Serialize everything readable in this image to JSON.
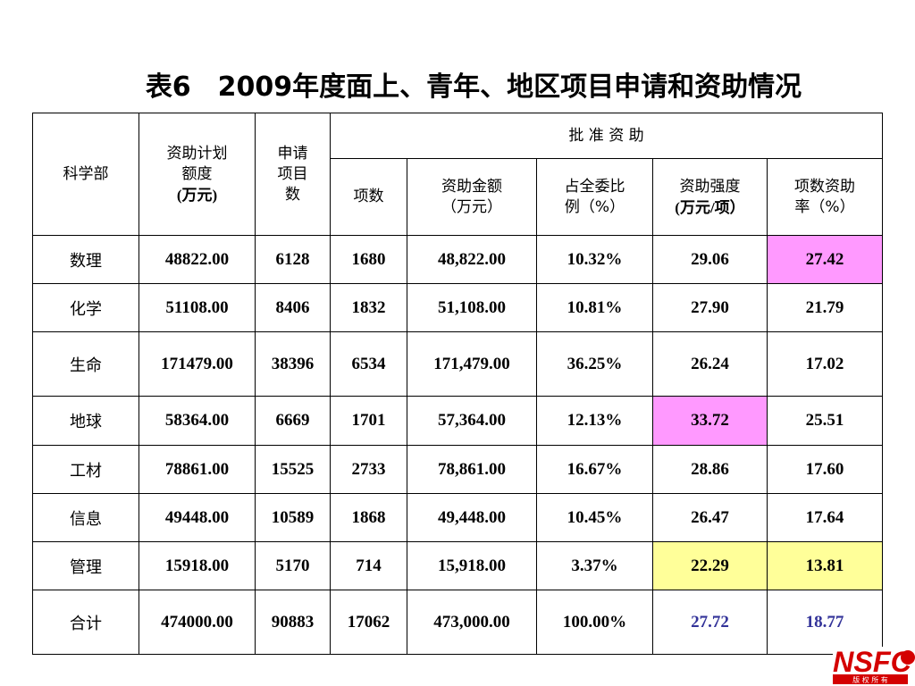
{
  "title": "表6　2009年度面上、青年、地区项目申请和资助情况",
  "headers": {
    "dept": "科学部",
    "plan_line1": "资助计划",
    "plan_line2": "额度",
    "plan_line3": "(万元)",
    "apply_line1": "申请",
    "apply_line2": "项目",
    "apply_line3": "数",
    "approved": "批 准 资 助",
    "count": "项数",
    "amount_line1": "资助金额",
    "amount_line2": "（万元）",
    "share_line1": "占全委比",
    "share_line2": "例（%）",
    "intensity_line1": "资助强度",
    "intensity_line2": "(万元/项）",
    "rate_line1": "项数资助",
    "rate_line2": "率（%）"
  },
  "rows": [
    {
      "dept": "数理",
      "plan": "48822.00",
      "apply": "6128",
      "count": "1680",
      "amount": "48,822.00",
      "share": "10.32%",
      "intensity": "29.06",
      "rate": "27.42"
    },
    {
      "dept": "化学",
      "plan": "51108.00",
      "apply": "8406",
      "count": "1832",
      "amount": "51,108.00",
      "share": "10.81%",
      "intensity": "27.90",
      "rate": "21.79"
    },
    {
      "dept": "生命",
      "plan": "171479.00",
      "apply": "38396",
      "count": "6534",
      "amount": "171,479.00",
      "share": "36.25%",
      "intensity": "26.24",
      "rate": "17.02"
    },
    {
      "dept": "地球",
      "plan": "58364.00",
      "apply": "6669",
      "count": "1701",
      "amount": "57,364.00",
      "share": "12.13%",
      "intensity": "33.72",
      "rate": "25.51"
    },
    {
      "dept": "工材",
      "plan": "78861.00",
      "apply": "15525",
      "count": "2733",
      "amount": "78,861.00",
      "share": "16.67%",
      "intensity": "28.86",
      "rate": "17.60"
    },
    {
      "dept": "信息",
      "plan": "49448.00",
      "apply": "10589",
      "count": "1868",
      "amount": "49,448.00",
      "share": "10.45%",
      "intensity": "26.47",
      "rate": "17.64"
    },
    {
      "dept": "管理",
      "plan": "15918.00",
      "apply": "5170",
      "count": "714",
      "amount": "15,918.00",
      "share": "3.37%",
      "intensity": "22.29",
      "rate": "13.81"
    },
    {
      "dept": "合计",
      "plan": "474000.00",
      "apply": "90883",
      "count": "17062",
      "amount": "473,000.00",
      "share": "100.00%",
      "intensity": "27.72",
      "rate": "18.77"
    }
  ],
  "highlight_colors": {
    "pink": "#ff99ff",
    "yellow": "#ffff99",
    "total_text": "#333399"
  },
  "logo": {
    "text": "NSFC",
    "subtext": "版 权 所 有",
    "color": "#d40000"
  }
}
